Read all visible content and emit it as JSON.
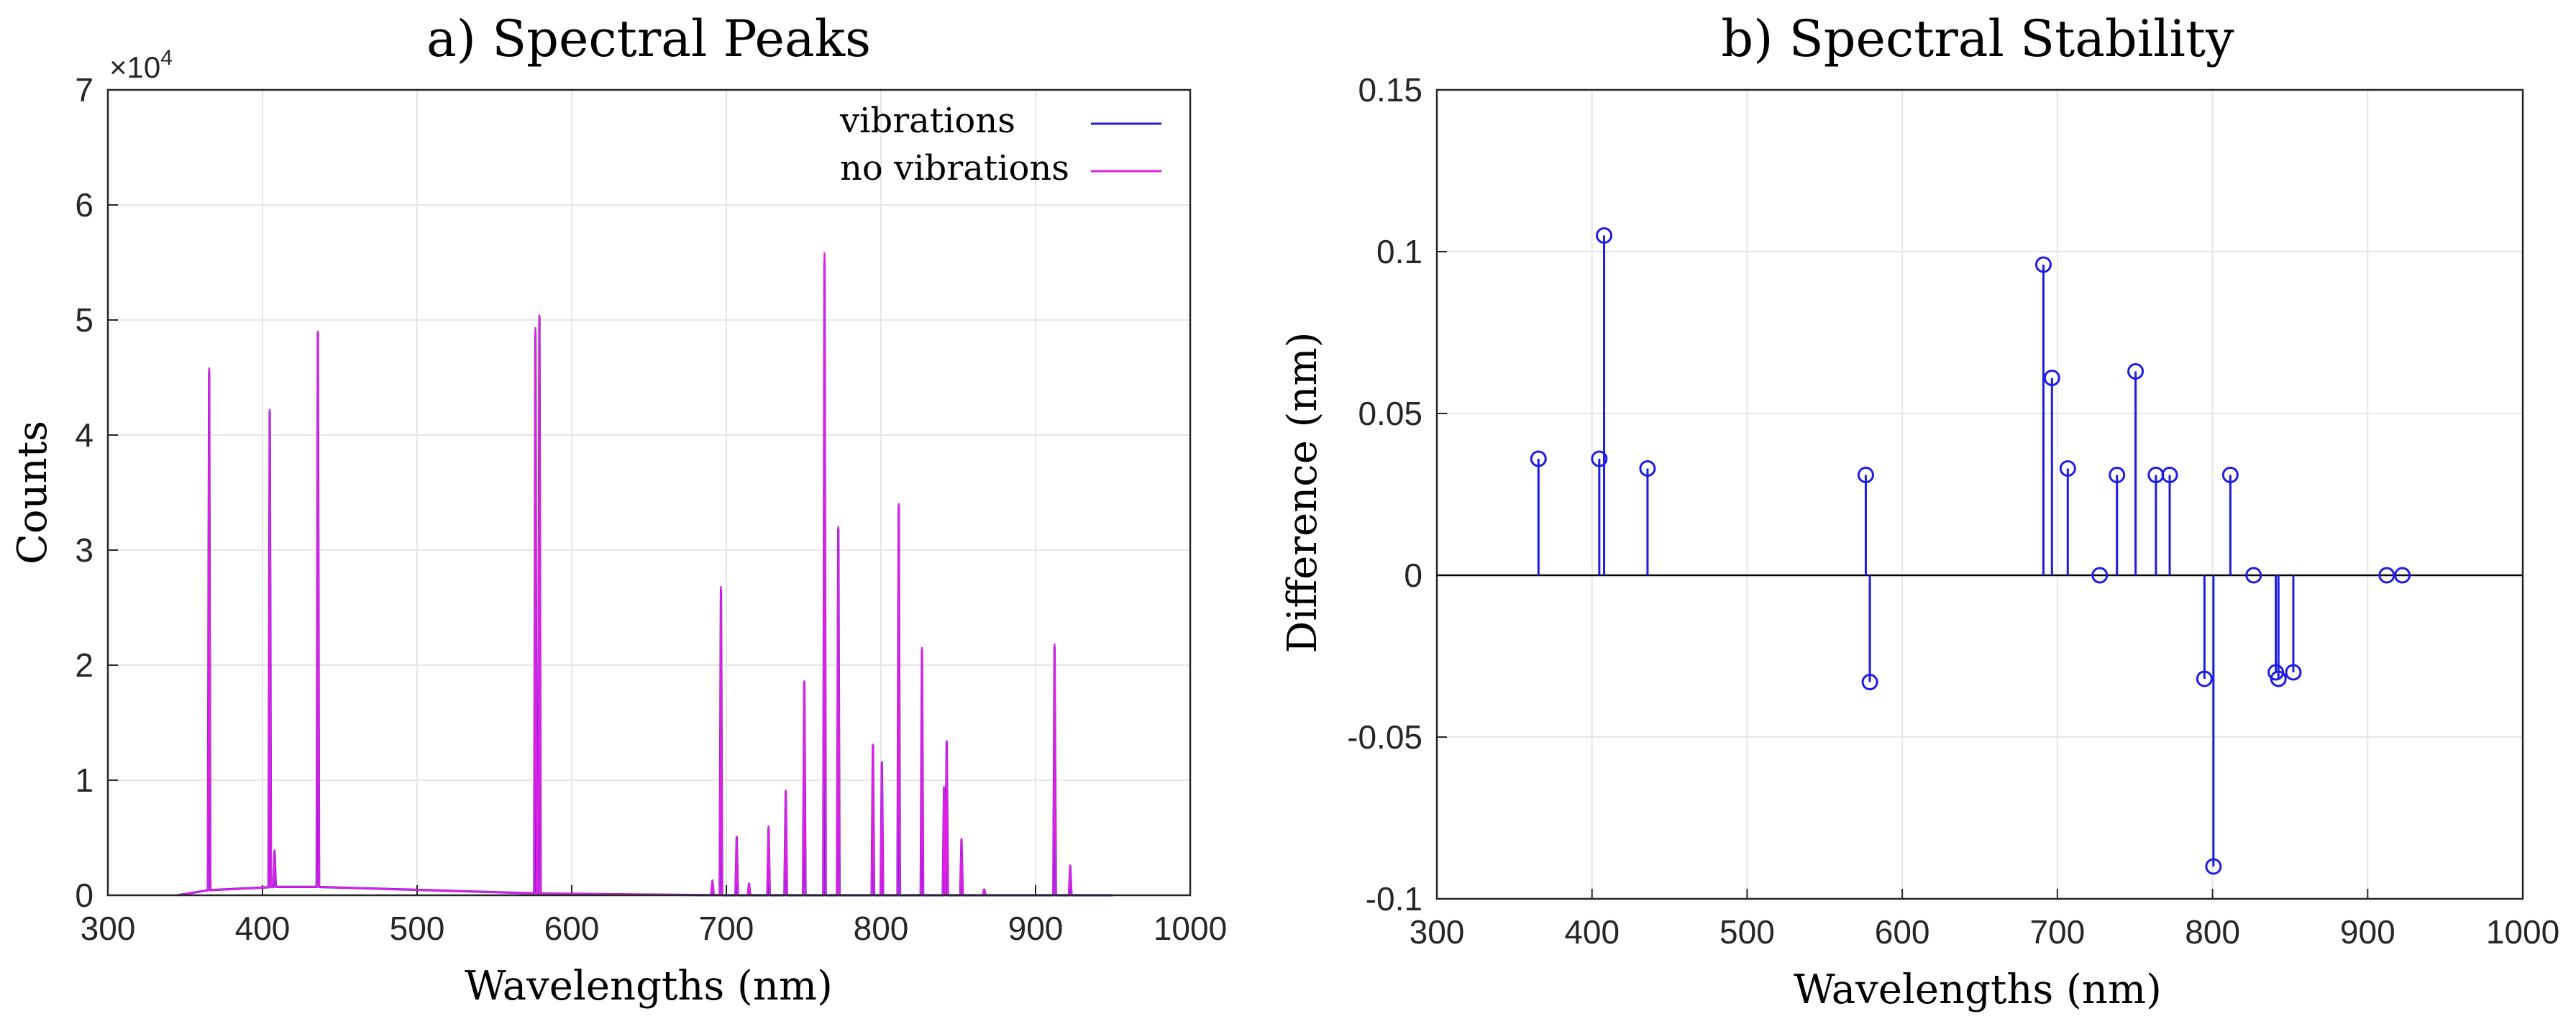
{
  "chart_data": [
    {
      "type": "line",
      "title": "a) Spectral Peaks",
      "xlabel": "Wavelengths (nm)",
      "ylabel": "Counts",
      "y_exponent_label": "×10",
      "y_exponent_power": "4",
      "xlim": [
        300,
        1000
      ],
      "ylim": [
        0,
        70000
      ],
      "xticks": [
        "300",
        "400",
        "500",
        "600",
        "700",
        "800",
        "900",
        "1000"
      ],
      "yticks": [
        "0",
        "1",
        "2",
        "3",
        "4",
        "5",
        "6",
        "7"
      ],
      "grid": true,
      "legend_position": "top-right",
      "x_range": [
        345,
        950
      ],
      "series": [
        {
          "name": "vibrations",
          "color": "#1c1ce6",
          "baseline": [
            [
              345,
              0
            ],
            [
              360,
              400
            ],
            [
              420,
              800
            ],
            [
              440,
              700
            ],
            [
              570,
              200
            ],
            [
              590,
              100
            ],
            [
              700,
              0
            ],
            [
              950,
              0
            ]
          ],
          "peaks": [
            {
              "x": 365.5,
              "y": 45500
            },
            {
              "x": 404.7,
              "y": 42000
            },
            {
              "x": 407.8,
              "y": 3800
            },
            {
              "x": 435.8,
              "y": 48800
            },
            {
              "x": 576.5,
              "y": 48800
            },
            {
              "x": 579.1,
              "y": 50200
            },
            {
              "x": 691,
              "y": 1200
            },
            {
              "x": 696.5,
              "y": 26500
            },
            {
              "x": 706.7,
              "y": 5000
            },
            {
              "x": 714.7,
              "y": 1000
            },
            {
              "x": 727.3,
              "y": 5800
            },
            {
              "x": 738.4,
              "y": 9000
            },
            {
              "x": 750.4,
              "y": 18500
            },
            {
              "x": 763.5,
              "y": 55000
            },
            {
              "x": 772.4,
              "y": 31800
            },
            {
              "x": 794.8,
              "y": 13000
            },
            {
              "x": 800.6,
              "y": 11500
            },
            {
              "x": 811.5,
              "y": 33800
            },
            {
              "x": 826.5,
              "y": 21300
            },
            {
              "x": 840.8,
              "y": 9300
            },
            {
              "x": 842.5,
              "y": 13300
            },
            {
              "x": 852.1,
              "y": 4800
            },
            {
              "x": 866.8,
              "y": 500
            },
            {
              "x": 912.3,
              "y": 21500
            },
            {
              "x": 922.4,
              "y": 2500
            }
          ]
        },
        {
          "name": "no vibrations",
          "color": "#e020e0",
          "baseline": [
            [
              345,
              0
            ],
            [
              360,
              400
            ],
            [
              420,
              800
            ],
            [
              440,
              700
            ],
            [
              570,
              200
            ],
            [
              590,
              100
            ],
            [
              700,
              0
            ],
            [
              950,
              0
            ]
          ],
          "peaks": [
            {
              "x": 365.5,
              "y": 45800
            },
            {
              "x": 404.7,
              "y": 42200
            },
            {
              "x": 407.8,
              "y": 3900
            },
            {
              "x": 435.8,
              "y": 49000
            },
            {
              "x": 576.5,
              "y": 49300
            },
            {
              "x": 579.1,
              "y": 50400
            },
            {
              "x": 691,
              "y": 1300
            },
            {
              "x": 696.5,
              "y": 26800
            },
            {
              "x": 706.7,
              "y": 5100
            },
            {
              "x": 714.7,
              "y": 1000
            },
            {
              "x": 727.3,
              "y": 6000
            },
            {
              "x": 738.4,
              "y": 9100
            },
            {
              "x": 750.4,
              "y": 18600
            },
            {
              "x": 763.5,
              "y": 55800
            },
            {
              "x": 772.4,
              "y": 32000
            },
            {
              "x": 794.8,
              "y": 13100
            },
            {
              "x": 800.6,
              "y": 11600
            },
            {
              "x": 811.5,
              "y": 34000
            },
            {
              "x": 826.5,
              "y": 21500
            },
            {
              "x": 840.8,
              "y": 9400
            },
            {
              "x": 842.5,
              "y": 13400
            },
            {
              "x": 852.1,
              "y": 4900
            },
            {
              "x": 866.8,
              "y": 500
            },
            {
              "x": 912.3,
              "y": 21800
            },
            {
              "x": 922.4,
              "y": 2600
            }
          ]
        }
      ]
    },
    {
      "type": "stem",
      "title": "b) Spectral Stability",
      "xlabel": "Wavelengths (nm)",
      "ylabel": "Difference (nm)",
      "xlim": [
        300,
        1000
      ],
      "ylim": [
        -0.1,
        0.15
      ],
      "xticks": [
        "300",
        "400",
        "500",
        "600",
        "700",
        "800",
        "900",
        "1000"
      ],
      "yticks": [
        "-0.1",
        "-0.05",
        "0",
        "0.05",
        "0.1",
        "0.15"
      ],
      "grid": true,
      "color": "#1c1ce6",
      "points": [
        {
          "x": 365.5,
          "y": 0.036
        },
        {
          "x": 404.7,
          "y": 0.036
        },
        {
          "x": 407.8,
          "y": 0.105
        },
        {
          "x": 435.8,
          "y": 0.033
        },
        {
          "x": 576.5,
          "y": 0.031
        },
        {
          "x": 579.1,
          "y": -0.033
        },
        {
          "x": 691,
          "y": 0.096
        },
        {
          "x": 696.5,
          "y": 0.061
        },
        {
          "x": 706.7,
          "y": 0.033
        },
        {
          "x": 727.3,
          "y": 0.0
        },
        {
          "x": 738.4,
          "y": 0.031
        },
        {
          "x": 750.4,
          "y": 0.063
        },
        {
          "x": 763.5,
          "y": 0.031
        },
        {
          "x": 772.4,
          "y": 0.031
        },
        {
          "x": 794.8,
          "y": -0.032
        },
        {
          "x": 800.6,
          "y": -0.09
        },
        {
          "x": 811.5,
          "y": 0.031
        },
        {
          "x": 826.5,
          "y": 0.0
        },
        {
          "x": 840.8,
          "y": -0.03
        },
        {
          "x": 842.5,
          "y": -0.032
        },
        {
          "x": 852.1,
          "y": -0.03
        },
        {
          "x": 912.3,
          "y": 0.0
        },
        {
          "x": 922.4,
          "y": 0.0
        }
      ]
    }
  ]
}
